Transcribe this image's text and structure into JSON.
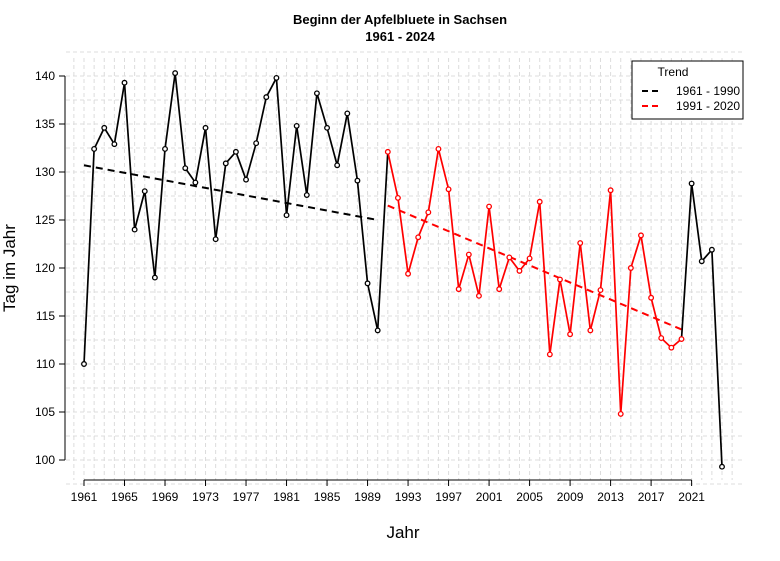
{
  "chart_data": {
    "type": "line",
    "title": "Beginn der Apfelbluete in Sachsen",
    "subtitle": "1961 - 2024",
    "xlabel": "Jahr",
    "ylabel": "Tag im Jahr",
    "xlim": [
      1961,
      2024
    ],
    "ylim": [
      100,
      140
    ],
    "xticks": [
      1961,
      1965,
      1969,
      1973,
      1977,
      1981,
      1985,
      1989,
      1993,
      1997,
      2001,
      2005,
      2009,
      2013,
      2017,
      2021
    ],
    "yticks": [
      100,
      105,
      110,
      115,
      120,
      125,
      130,
      135,
      140
    ],
    "grid": true,
    "x": [
      1961,
      1962,
      1963,
      1964,
      1965,
      1966,
      1967,
      1968,
      1969,
      1970,
      1971,
      1972,
      1973,
      1974,
      1975,
      1976,
      1977,
      1978,
      1979,
      1980,
      1981,
      1982,
      1983,
      1984,
      1985,
      1986,
      1987,
      1988,
      1989,
      1990,
      1991,
      1992,
      1993,
      1994,
      1995,
      1996,
      1997,
      1998,
      1999,
      2000,
      2001,
      2002,
      2003,
      2004,
      2005,
      2006,
      2007,
      2008,
      2009,
      2010,
      2011,
      2012,
      2013,
      2014,
      2015,
      2016,
      2017,
      2018,
      2019,
      2020,
      2021,
      2022,
      2023,
      2024
    ],
    "values": [
      110,
      132.4,
      134.6,
      132.9,
      139.3,
      124.0,
      128.0,
      119.0,
      132.4,
      140.3,
      130.4,
      128.9,
      134.6,
      123.0,
      130.9,
      132.1,
      129.2,
      133.0,
      137.8,
      139.8,
      125.5,
      134.8,
      127.6,
      138.2,
      134.6,
      130.7,
      136.1,
      129.1,
      118.4,
      113.5,
      132.1,
      127.3,
      119.4,
      123.2,
      125.8,
      132.4,
      128.2,
      117.8,
      121.4,
      117.1,
      126.4,
      117.8,
      121.1,
      119.7,
      121.0,
      126.9,
      111.0,
      118.8,
      113.1,
      122.6,
      113.5,
      117.7,
      128.1,
      104.8,
      120.0,
      123.4,
      116.9,
      112.7,
      111.7,
      112.6,
      128.8,
      120.7,
      121.9,
      99.3
    ],
    "highlight_period": [
      1991,
      2020
    ],
    "colors": {
      "default": "#000000",
      "highlight": "#ff0000"
    },
    "legend": {
      "title": "Trend",
      "placement": "top-right",
      "entries": [
        {
          "label": "1961 - 1990",
          "color": "#000000",
          "style": "dashed"
        },
        {
          "label": "1991 - 2020",
          "color": "#ff0000",
          "style": "dashed"
        }
      ]
    },
    "trends": [
      {
        "name": "1961 - 1990",
        "x": [
          1961,
          1990
        ],
        "y": [
          130.7,
          125.0
        ],
        "color": "#000000"
      },
      {
        "name": "1991 - 2020",
        "x": [
          1991,
          2020
        ],
        "y": [
          126.5,
          113.6
        ],
        "color": "#ff0000"
      }
    ]
  }
}
